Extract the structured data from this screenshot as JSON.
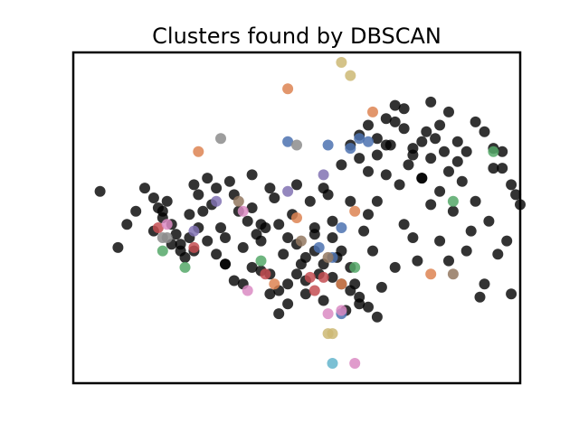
{
  "chart_data": {
    "type": "scatter",
    "title": "Clusters found by DBSCAN",
    "xlabel": "",
    "ylabel": "",
    "xlim": [
      0,
      100
    ],
    "ylim": [
      0,
      100
    ],
    "grid": false,
    "axes_ticks": false,
    "legend": "none",
    "series": [
      {
        "color": "#000000",
        "alpha": 0.8,
        "role": "noise",
        "points": [
          [
            6,
            58
          ],
          [
            18,
            46
          ],
          [
            19,
            53
          ],
          [
            20,
            50
          ],
          [
            21,
            55
          ],
          [
            22,
            48
          ],
          [
            23,
            45
          ],
          [
            24,
            42
          ],
          [
            25,
            38
          ],
          [
            27,
            40
          ],
          [
            26,
            51
          ],
          [
            27,
            60
          ],
          [
            28,
            57
          ],
          [
            29,
            52
          ],
          [
            30,
            62
          ],
          [
            31,
            54
          ],
          [
            32,
            59
          ],
          [
            33,
            47
          ],
          [
            34,
            44
          ],
          [
            34,
            36
          ],
          [
            35,
            61
          ],
          [
            36,
            57
          ],
          [
            37,
            52
          ],
          [
            38,
            41
          ],
          [
            39,
            49
          ],
          [
            40,
            53
          ],
          [
            41,
            45
          ],
          [
            42,
            34
          ],
          [
            43,
            47
          ],
          [
            44,
            59
          ],
          [
            45,
            56
          ],
          [
            46,
            48
          ],
          [
            47,
            39
          ],
          [
            48,
            30
          ],
          [
            49,
            51
          ],
          [
            50,
            42
          ],
          [
            51,
            36
          ],
          [
            52,
            27
          ],
          [
            53,
            55
          ],
          [
            54,
            45
          ],
          [
            55,
            33
          ],
          [
            56,
            25
          ],
          [
            57,
            57
          ],
          [
            58,
            49
          ],
          [
            59,
            38
          ],
          [
            60,
            40
          ],
          [
            61,
            22
          ],
          [
            62,
            35
          ],
          [
            63,
            30
          ],
          [
            64,
            24
          ],
          [
            65,
            46
          ],
          [
            66,
            51
          ],
          [
            67,
            40
          ],
          [
            68,
            55
          ],
          [
            69,
            29
          ],
          [
            70,
            63
          ],
          [
            71,
            72
          ],
          [
            72,
            35
          ],
          [
            73,
            60
          ],
          [
            74,
            48
          ],
          [
            75,
            66
          ],
          [
            76,
            44
          ],
          [
            77,
            37
          ],
          [
            78,
            62
          ],
          [
            79,
            76
          ],
          [
            80,
            68
          ],
          [
            81,
            74
          ],
          [
            82,
            58
          ],
          [
            83,
            70
          ],
          [
            84,
            64
          ],
          [
            85,
            52
          ],
          [
            86,
            67
          ],
          [
            87,
            61
          ],
          [
            88,
            40
          ],
          [
            89,
            46
          ],
          [
            90,
            55
          ],
          [
            91,
            26
          ],
          [
            92,
            30
          ],
          [
            93,
            49
          ],
          [
            94,
            65
          ],
          [
            95,
            39
          ],
          [
            96,
            70
          ],
          [
            97,
            43
          ],
          [
            98,
            27
          ],
          [
            99,
            57
          ],
          [
            40,
            63
          ],
          [
            42,
            48
          ],
          [
            44,
            33
          ],
          [
            46,
            28
          ],
          [
            48,
            44
          ],
          [
            50,
            60
          ],
          [
            52,
            38
          ],
          [
            54,
            47
          ],
          [
            56,
            59
          ],
          [
            58,
            44
          ],
          [
            60,
            66
          ],
          [
            62,
            55
          ],
          [
            64,
            68
          ],
          [
            66,
            64
          ],
          [
            68,
            69
          ],
          [
            70,
            72
          ],
          [
            72,
            79
          ],
          [
            74,
            83
          ],
          [
            76,
            71
          ],
          [
            78,
            62
          ],
          [
            80,
            54
          ],
          [
            82,
            43
          ],
          [
            84,
            37
          ],
          [
            60,
            30
          ],
          [
            62,
            28
          ],
          [
            64,
            26
          ],
          [
            66,
            23
          ],
          [
            68,
            20
          ],
          [
            58,
            32
          ],
          [
            56,
            36
          ],
          [
            54,
            40
          ],
          [
            52,
            31
          ],
          [
            50,
            33
          ],
          [
            48,
            24
          ],
          [
            46,
            21
          ],
          [
            44,
            27
          ],
          [
            42,
            43
          ],
          [
            40,
            35
          ],
          [
            38,
            30
          ],
          [
            36,
            31
          ],
          [
            34,
            36
          ],
          [
            32,
            39
          ],
          [
            30,
            43
          ],
          [
            28,
            47
          ],
          [
            26,
            44
          ],
          [
            24,
            40
          ],
          [
            22,
            42
          ],
          [
            20,
            52
          ],
          [
            18,
            56
          ],
          [
            16,
            59
          ],
          [
            14,
            52
          ],
          [
            12,
            48
          ],
          [
            10,
            41
          ],
          [
            62,
            72
          ],
          [
            64,
            75
          ],
          [
            66,
            78
          ],
          [
            68,
            74
          ],
          [
            70,
            80
          ],
          [
            72,
            84
          ],
          [
            74,
            77
          ],
          [
            76,
            69
          ],
          [
            78,
            73
          ],
          [
            80,
            85
          ],
          [
            82,
            78
          ],
          [
            84,
            82
          ],
          [
            86,
            73
          ],
          [
            88,
            70
          ],
          [
            90,
            79
          ],
          [
            92,
            76
          ],
          [
            94,
            71
          ],
          [
            96,
            65
          ],
          [
            98,
            60
          ],
          [
            100,
            54
          ]
        ]
      },
      {
        "color": "#4c72b0",
        "points": [
          [
            48,
            73
          ],
          [
            62,
            71
          ],
          [
            60,
            47
          ],
          [
            55,
            41
          ],
          [
            57,
            72
          ],
          [
            64,
            74
          ],
          [
            58,
            38
          ],
          [
            60,
            21
          ],
          [
            66,
            73
          ]
        ]
      },
      {
        "color": "#dd8452",
        "points": [
          [
            48,
            89
          ],
          [
            67,
            82
          ],
          [
            28,
            70
          ],
          [
            50,
            50
          ],
          [
            45,
            30
          ],
          [
            60,
            30
          ],
          [
            63,
            52
          ],
          [
            80,
            33
          ]
        ]
      },
      {
        "color": "#55a868",
        "points": [
          [
            94,
            70
          ],
          [
            85,
            55
          ],
          [
            25,
            35
          ],
          [
            20,
            40
          ],
          [
            42,
            37
          ],
          [
            63,
            35
          ]
        ]
      },
      {
        "color": "#c44e52",
        "points": [
          [
            19,
            47
          ],
          [
            27,
            41
          ],
          [
            43,
            33
          ],
          [
            53,
            32
          ],
          [
            56,
            32
          ],
          [
            54,
            28
          ]
        ]
      },
      {
        "color": "#8172b3",
        "points": [
          [
            32,
            55
          ],
          [
            48,
            58
          ],
          [
            56,
            63
          ],
          [
            27,
            46
          ]
        ]
      },
      {
        "color": "#937860",
        "points": [
          [
            37,
            55
          ],
          [
            51,
            43
          ],
          [
            57,
            38
          ],
          [
            85,
            33
          ]
        ]
      },
      {
        "color": "#da8bc3",
        "points": [
          [
            21,
            48
          ],
          [
            38,
            52
          ],
          [
            39,
            28
          ],
          [
            57,
            21
          ],
          [
            60,
            22
          ],
          [
            63,
            6
          ]
        ]
      },
      {
        "color": "#8c8c8c",
        "points": [
          [
            33,
            74
          ],
          [
            50,
            72
          ],
          [
            20,
            44
          ],
          [
            21,
            44
          ]
        ]
      },
      {
        "color": "#ccb974",
        "points": [
          [
            62,
            93
          ],
          [
            60,
            97
          ],
          [
            57,
            15
          ],
          [
            58,
            15
          ]
        ]
      },
      {
        "color": "#64b5cd",
        "points": [
          [
            58,
            6
          ]
        ]
      }
    ]
  }
}
